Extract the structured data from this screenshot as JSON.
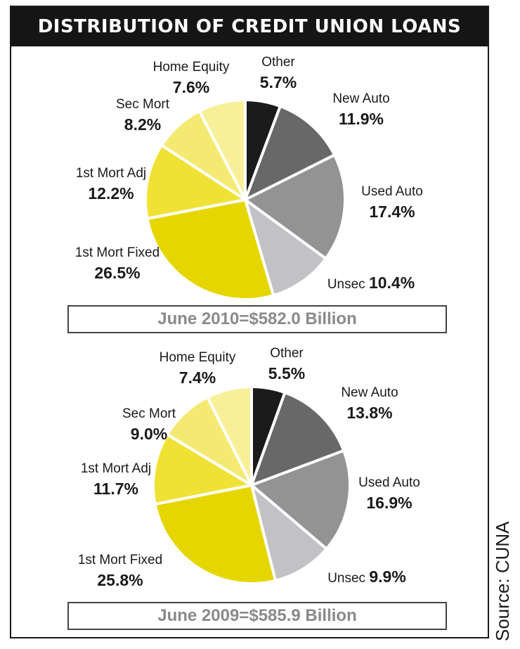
{
  "title": "DISTRIBUTION OF CREDIT UNION LOANS",
  "source": "Source: CUNA",
  "colors": {
    "Other": "#1b1b1b",
    "New Auto": "#686868",
    "Used Auto": "#939393",
    "Unsec": "#c2c2c6",
    "1st Mort Fixed": "#e6d600",
    "1st Mort Adj": "#f0e234",
    "Sec Mort": "#f4ea72",
    "Home Equity": "#f8f098"
  },
  "chart_data": [
    {
      "type": "pie",
      "title": "June 2010=$582.0 Billion",
      "labels": [
        "Other",
        "New Auto",
        "Used Auto",
        "Unsec",
        "1st Mort Fixed",
        "1st Mort Adj",
        "Sec Mort",
        "Home Equity"
      ],
      "values": [
        5.7,
        11.9,
        17.4,
        10.4,
        26.5,
        12.2,
        8.2,
        7.6
      ],
      "value_labels": [
        "5.7%",
        "11.9%",
        "17.4%",
        "10.4%",
        "26.5%",
        "12.2%",
        "8.2%",
        "7.6%"
      ]
    },
    {
      "type": "pie",
      "title": "June 2009=$585.9 Billion",
      "labels": [
        "Other",
        "New Auto",
        "Used Auto",
        "Unsec",
        "1st Mort Fixed",
        "1st Mort Adj",
        "Sec Mort",
        "Home Equity"
      ],
      "values": [
        5.5,
        13.8,
        16.9,
        9.9,
        25.8,
        11.7,
        9.0,
        7.4
      ],
      "value_labels": [
        "5.5%",
        "13.8%",
        "16.9%",
        "9.9%",
        "25.8%",
        "11.7%",
        "9.0%",
        "7.4%"
      ]
    }
  ]
}
